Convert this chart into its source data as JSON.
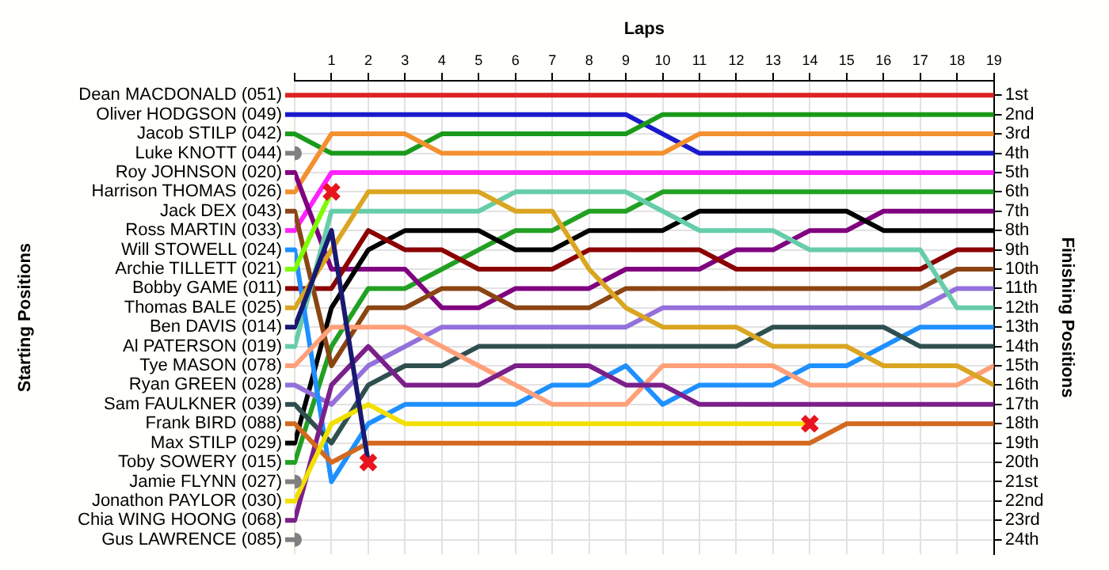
{
  "chart_data": {
    "type": "line",
    "xlabel": "Laps",
    "ylabel": "Finishing Positions",
    "annotations": [
      "Starting Positions"
    ],
    "x": [
      0,
      1,
      2,
      3,
      4,
      5,
      6,
      7,
      8,
      9,
      10,
      11,
      12,
      13,
      14,
      15,
      16,
      17,
      18,
      19
    ],
    "xlim": [
      0,
      19
    ],
    "xticks": [
      {
        "value": 0,
        "label": null
      },
      1,
      2,
      3,
      4,
      5,
      6,
      7,
      8,
      9,
      10,
      11,
      12,
      13,
      14,
      15,
      16,
      17,
      18,
      19
    ],
    "ylim": [
      24.75,
      0.25
    ],
    "yticks": [
      {
        "value": 1,
        "label": "1st"
      },
      {
        "value": 2,
        "label": "2nd"
      },
      {
        "value": 3,
        "label": "3rd"
      },
      {
        "value": 4,
        "label": "4th"
      },
      {
        "value": 5,
        "label": "5th"
      },
      {
        "value": 6,
        "label": "6th"
      },
      {
        "value": 7,
        "label": "7th"
      },
      {
        "value": 8,
        "label": "8th"
      },
      {
        "value": 9,
        "label": "9th"
      },
      {
        "value": 10,
        "label": "10th"
      },
      {
        "value": 11,
        "label": "11th"
      },
      {
        "value": 12,
        "label": "12th"
      },
      {
        "value": 13,
        "label": "13th"
      },
      {
        "value": 14,
        "label": "14th"
      },
      {
        "value": 15,
        "label": "15th"
      },
      {
        "value": 16,
        "label": "16th"
      },
      {
        "value": 17,
        "label": "17th"
      },
      {
        "value": 18,
        "label": "18th"
      },
      {
        "value": 19,
        "label": "19th"
      },
      {
        "value": 20,
        "label": "20th"
      },
      {
        "value": 21,
        "label": "21st"
      },
      {
        "value": 22,
        "label": "22nd"
      },
      {
        "value": 23,
        "label": "23rd"
      },
      {
        "value": 24,
        "label": "24th"
      }
    ],
    "grid": true,
    "legend": "left",
    "marker": "none",
    "line_style": "solid",
    "series": [
      {
        "name": "Luke KNOTT (044)",
        "color": "#808080",
        "marker": "circle",
        "values": [
          4,
          null,
          null,
          null,
          null,
          null,
          null,
          null,
          null,
          null,
          null,
          null,
          null,
          null,
          null,
          null,
          null,
          null,
          null,
          null
        ]
      },
      {
        "name": "Jamie FLYNN (027)",
        "color": "#808080",
        "marker": "circle",
        "values": [
          21,
          null,
          null,
          null,
          null,
          null,
          null,
          null,
          null,
          null,
          null,
          null,
          null,
          null,
          null,
          null,
          null,
          null,
          null,
          null
        ]
      },
      {
        "name": "Gus LAWRENCE (085)",
        "color": "#808080",
        "marker": "circle",
        "values": [
          24,
          null,
          null,
          null,
          null,
          null,
          null,
          null,
          null,
          null,
          null,
          null,
          null,
          null,
          null,
          null,
          null,
          null,
          null,
          null
        ]
      },
      {
        "name": "Ben DAVIS (014)",
        "color": "#191970",
        "values": [
          13,
          8,
          20,
          null,
          null,
          null,
          null,
          null,
          null,
          null,
          null,
          null,
          null,
          null,
          null,
          null,
          null,
          null,
          null,
          null
        ]
      },
      {
        "name": "Archie TILLETT (021)",
        "color": "#7cfc00",
        "values": [
          10,
          6,
          null,
          null,
          null,
          null,
          null,
          null,
          null,
          null,
          null,
          null,
          null,
          null,
          null,
          null,
          null,
          null,
          null,
          null
        ]
      },
      {
        "name": "Jonathon PAYLOR (030)",
        "color": "#f2e000",
        "values": [
          22,
          18,
          17,
          18,
          18,
          18,
          18,
          18,
          18,
          18,
          18,
          18,
          18,
          18,
          18,
          null,
          null,
          null,
          null,
          null
        ]
      },
      {
        "name": "Frank BIRD (088)",
        "color": "#d2691e",
        "values": [
          18,
          20,
          19,
          19,
          19,
          19,
          19,
          19,
          19,
          19,
          19,
          19,
          19,
          19,
          19,
          18,
          18,
          18,
          18,
          18
        ]
      },
      {
        "name": "Chia WING HOONG (068)",
        "color": "#7b1f8a",
        "values": [
          23,
          16,
          14,
          16,
          16,
          16,
          15,
          15,
          15,
          16,
          16,
          17,
          17,
          17,
          17,
          17,
          17,
          17,
          17,
          17
        ]
      },
      {
        "name": "Thomas BALE (025)",
        "color": "#daa520",
        "values": [
          12,
          9,
          6,
          6,
          6,
          6,
          7,
          7,
          10,
          12,
          13,
          13,
          13,
          14,
          14,
          14,
          15,
          15,
          15,
          16
        ]
      },
      {
        "name": "Tye MASON (078)",
        "color": "#ffa07a",
        "values": [
          15,
          13,
          13,
          13,
          14,
          15,
          16,
          17,
          17,
          17,
          15,
          15,
          15,
          15,
          16,
          16,
          16,
          16,
          16,
          15
        ]
      },
      {
        "name": "Sam FAULKNER (039)",
        "color": "#2f4f4f",
        "values": [
          17,
          19,
          16,
          15,
          15,
          14,
          14,
          14,
          14,
          14,
          14,
          14,
          14,
          13,
          13,
          13,
          13,
          14,
          14,
          14
        ]
      },
      {
        "name": "Will STOWELL (024)",
        "color": "#1e90ff",
        "values": [
          9,
          21,
          18,
          17,
          17,
          17,
          17,
          16,
          16,
          15,
          17,
          16,
          16,
          16,
          15,
          15,
          14,
          13,
          13,
          13
        ]
      },
      {
        "name": "Al PATERSON (019)",
        "color": "#66cdaa",
        "values": [
          14,
          7,
          7,
          7,
          7,
          7,
          6,
          6,
          6,
          6,
          7,
          8,
          8,
          8,
          9,
          9,
          9,
          9,
          12,
          12
        ]
      },
      {
        "name": "Ryan GREEN (028)",
        "color": "#9370db",
        "values": [
          16,
          17,
          15,
          14,
          13,
          13,
          13,
          13,
          13,
          13,
          12,
          12,
          12,
          12,
          12,
          12,
          12,
          12,
          11,
          11
        ]
      },
      {
        "name": "Jack DEX (043)",
        "color": "#8b4513",
        "values": [
          7,
          15,
          12,
          12,
          11,
          11,
          12,
          12,
          12,
          11,
          11,
          11,
          11,
          11,
          11,
          11,
          11,
          11,
          10,
          10
        ]
      },
      {
        "name": "Bobby GAME (011)",
        "color": "#8b0000",
        "values": [
          11,
          11,
          8,
          9,
          9,
          10,
          10,
          10,
          9,
          9,
          9,
          9,
          10,
          10,
          10,
          10,
          10,
          10,
          9,
          9
        ]
      },
      {
        "name": "Max STILP (029)",
        "color": "#000000",
        "values": [
          19,
          12,
          9,
          8,
          8,
          8,
          9,
          9,
          8,
          8,
          8,
          7,
          7,
          7,
          7,
          7,
          8,
          8,
          8,
          8
        ]
      },
      {
        "name": "Roy JOHNSON (020)",
        "color": "#800080",
        "values": [
          5,
          10,
          10,
          10,
          12,
          12,
          11,
          11,
          11,
          10,
          10,
          10,
          9,
          9,
          8,
          8,
          7,
          7,
          7,
          7
        ]
      },
      {
        "name": "Toby SOWERY (015)",
        "color": "#22a022",
        "values": [
          20,
          14,
          11,
          11,
          10,
          9,
          8,
          8,
          7,
          7,
          6,
          6,
          6,
          6,
          6,
          6,
          6,
          6,
          6,
          6
        ]
      },
      {
        "name": "Ross MARTIN (033)",
        "color": "#ff22ff",
        "values": [
          8,
          5,
          5,
          5,
          5,
          5,
          5,
          5,
          5,
          5,
          5,
          5,
          5,
          5,
          5,
          5,
          5,
          5,
          5,
          5
        ]
      },
      {
        "name": "Harrison THOMAS (026)",
        "color": "#f39030",
        "values": [
          6,
          3,
          3,
          3,
          4,
          4,
          4,
          4,
          4,
          4,
          4,
          3,
          3,
          3,
          3,
          3,
          3,
          3,
          3,
          3
        ]
      },
      {
        "name": "Jacob STILP (042)",
        "color": "#1a9a1a",
        "values": [
          3,
          4,
          4,
          4,
          3,
          3,
          3,
          3,
          3,
          3,
          2,
          2,
          2,
          2,
          2,
          2,
          2,
          2,
          2,
          2
        ]
      },
      {
        "name": "Oliver HODGSON (049)",
        "color": "#1a1acc",
        "values": [
          2,
          2,
          2,
          2,
          2,
          2,
          2,
          2,
          2,
          2,
          3,
          4,
          4,
          4,
          4,
          4,
          4,
          4,
          4,
          4
        ]
      },
      {
        "name": "Dean MACDONALD (051)",
        "color": "#dd2222",
        "values": [
          1,
          1,
          1,
          1,
          1,
          1,
          1,
          1,
          1,
          1,
          1,
          1,
          1,
          1,
          1,
          1,
          1,
          1,
          1,
          1
        ]
      },
      {
        "type": "scatter",
        "marker": "cross",
        "color": "#e8141e",
        "x": [
          1,
          2,
          14
        ],
        "values": [
          6,
          20,
          18
        ]
      }
    ]
  }
}
